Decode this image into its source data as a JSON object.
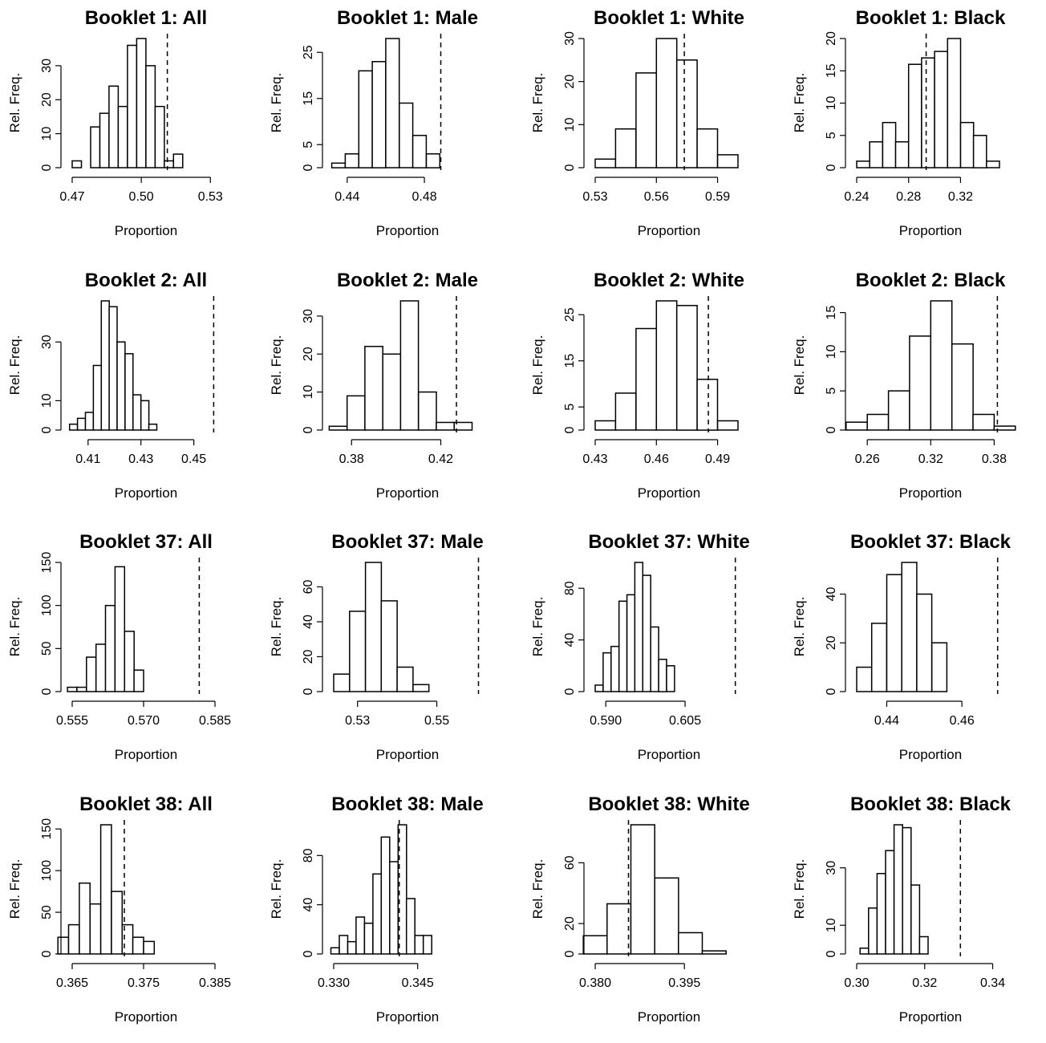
{
  "chart_data": [
    {
      "type": "bar",
      "title": "Booklet 1: All",
      "xlabel": "Proportion",
      "ylabel": "Rel. Freq.",
      "xticks": [
        0.47,
        0.5,
        0.53
      ],
      "xtick_labels": [
        "0.47",
        "0.50",
        "0.53"
      ],
      "yticks": [
        0,
        10,
        20,
        30
      ],
      "xlim": [
        0.47,
        0.532
      ],
      "ylim": [
        0,
        38
      ],
      "bin_width": 0.004,
      "bins": [
        [
          0.47,
          0.474,
          2
        ],
        [
          0.474,
          0.478,
          0
        ],
        [
          0.478,
          0.482,
          12
        ],
        [
          0.482,
          0.486,
          16
        ],
        [
          0.486,
          0.49,
          24
        ],
        [
          0.49,
          0.494,
          18
        ],
        [
          0.494,
          0.498,
          36
        ],
        [
          0.498,
          0.502,
          38
        ],
        [
          0.502,
          0.506,
          30
        ],
        [
          0.506,
          0.51,
          18
        ],
        [
          0.51,
          0.514,
          2
        ],
        [
          0.514,
          0.518,
          4
        ]
      ],
      "observed": 0.5113
    },
    {
      "type": "bar",
      "title": "Booklet 1: Male",
      "xlabel": "Proportion",
      "ylabel": "Rel. Freq.",
      "xticks": [
        0.44,
        0.48
      ],
      "xtick_labels": [
        "0.44",
        "0.48"
      ],
      "yticks": [
        0,
        5,
        15,
        25
      ],
      "xlim": [
        0.433,
        0.507
      ],
      "ylim": [
        0,
        28
      ],
      "bin_width": 0.007,
      "bins": [
        [
          0.432,
          0.439,
          1
        ],
        [
          0.439,
          0.446,
          3
        ],
        [
          0.446,
          0.453,
          21
        ],
        [
          0.453,
          0.46,
          23
        ],
        [
          0.46,
          0.467,
          28
        ],
        [
          0.467,
          0.474,
          14
        ],
        [
          0.474,
          0.481,
          7
        ],
        [
          0.481,
          0.488,
          3
        ]
      ],
      "observed": 0.4885
    },
    {
      "type": "bar",
      "title": "Booklet 1: White",
      "xlabel": "Proportion",
      "ylabel": "Rel. Freq.",
      "xticks": [
        0.53,
        0.56,
        0.59
      ],
      "xtick_labels": [
        "0.53",
        "0.56",
        "0.59"
      ],
      "yticks": [
        0,
        10,
        20,
        30
      ],
      "xlim": [
        0.53,
        0.6
      ],
      "ylim": [
        0,
        30
      ],
      "bin_width": 0.01,
      "bins": [
        [
          0.53,
          0.54,
          2
        ],
        [
          0.54,
          0.55,
          9
        ],
        [
          0.55,
          0.56,
          22
        ],
        [
          0.56,
          0.57,
          30
        ],
        [
          0.57,
          0.58,
          25
        ],
        [
          0.58,
          0.59,
          9
        ],
        [
          0.59,
          0.6,
          3
        ]
      ],
      "observed": 0.5737
    },
    {
      "type": "bar",
      "title": "Booklet 1: Black",
      "xlabel": "Proportion",
      "ylabel": "Rel. Freq.",
      "xticks": [
        0.24,
        0.28,
        0.32
      ],
      "xtick_labels": [
        "0.24",
        "0.28",
        "0.32"
      ],
      "yticks": [
        0,
        5,
        10,
        15,
        20
      ],
      "xlim": [
        0.24,
        0.35
      ],
      "ylim": [
        0,
        20
      ],
      "bin_width": 0.01,
      "bins": [
        [
          0.24,
          0.25,
          1
        ],
        [
          0.25,
          0.26,
          4
        ],
        [
          0.26,
          0.27,
          7
        ],
        [
          0.27,
          0.28,
          4
        ],
        [
          0.28,
          0.29,
          16
        ],
        [
          0.29,
          0.3,
          17
        ],
        [
          0.3,
          0.31,
          18
        ],
        [
          0.31,
          0.32,
          20
        ],
        [
          0.32,
          0.33,
          7
        ],
        [
          0.33,
          0.34,
          5
        ],
        [
          0.34,
          0.35,
          1
        ]
      ],
      "observed": 0.2935
    },
    {
      "type": "bar",
      "title": "Booklet 2: All",
      "xlabel": "Proportion",
      "ylabel": "Rel. Freq.",
      "xticks": [
        0.41,
        0.43,
        0.45
      ],
      "xtick_labels": [
        "0.41",
        "0.43",
        "0.45"
      ],
      "yticks": [
        0,
        10,
        30
      ],
      "xlim": [
        0.404,
        0.458
      ],
      "ylim": [
        0,
        44
      ],
      "bin_width": 0.003,
      "bins": [
        [
          0.403,
          0.406,
          2
        ],
        [
          0.406,
          0.409,
          4
        ],
        [
          0.409,
          0.412,
          6
        ],
        [
          0.412,
          0.415,
          22
        ],
        [
          0.415,
          0.418,
          44
        ],
        [
          0.418,
          0.421,
          42
        ],
        [
          0.421,
          0.424,
          30
        ],
        [
          0.424,
          0.427,
          26
        ],
        [
          0.427,
          0.43,
          12
        ],
        [
          0.43,
          0.433,
          10
        ],
        [
          0.433,
          0.436,
          2
        ]
      ],
      "observed": 0.4575
    },
    {
      "type": "bar",
      "title": "Booklet 2: Male",
      "xlabel": "Proportion",
      "ylabel": "Rel. Freq.",
      "xticks": [
        0.38,
        0.42
      ],
      "xtick_labels": [
        "0.38",
        "0.42"
      ],
      "yticks": [
        0,
        10,
        20,
        30
      ],
      "xlim": [
        0.372,
        0.436
      ],
      "ylim": [
        0,
        34
      ],
      "bin_width": 0.008,
      "bins": [
        [
          0.37,
          0.378,
          1
        ],
        [
          0.378,
          0.386,
          9
        ],
        [
          0.386,
          0.394,
          22
        ],
        [
          0.394,
          0.402,
          20
        ],
        [
          0.402,
          0.41,
          34
        ],
        [
          0.41,
          0.418,
          10
        ],
        [
          0.418,
          0.426,
          2
        ],
        [
          0.426,
          0.434,
          2
        ]
      ],
      "observed": 0.427
    },
    {
      "type": "bar",
      "title": "Booklet 2: White",
      "xlabel": "Proportion",
      "ylabel": "Rel. Freq.",
      "xticks": [
        0.43,
        0.46,
        0.49
      ],
      "xtick_labels": [
        "0.43",
        "0.46",
        "0.49"
      ],
      "yticks": [
        0,
        5,
        15,
        25
      ],
      "xlim": [
        0.43,
        0.5
      ],
      "ylim": [
        0,
        28
      ],
      "bin_width": 0.01,
      "bins": [
        [
          0.43,
          0.44,
          2
        ],
        [
          0.44,
          0.45,
          8
        ],
        [
          0.45,
          0.46,
          22
        ],
        [
          0.46,
          0.47,
          28
        ],
        [
          0.47,
          0.48,
          27
        ],
        [
          0.48,
          0.49,
          11
        ],
        [
          0.49,
          0.5,
          2
        ]
      ],
      "observed": 0.4855
    },
    {
      "type": "bar",
      "title": "Booklet 2: Black",
      "xlabel": "Proportion",
      "ylabel": "Rel. Freq.",
      "xticks": [
        0.26,
        0.32,
        0.38
      ],
      "xtick_labels": [
        "0.26",
        "0.32",
        "0.38"
      ],
      "yticks": [
        0,
        5,
        10,
        15
      ],
      "xlim": [
        0.25,
        0.385
      ],
      "ylim": [
        0,
        16.5
      ],
      "bin_width": 0.02,
      "bins": [
        [
          0.24,
          0.26,
          1
        ],
        [
          0.26,
          0.28,
          2
        ],
        [
          0.28,
          0.3,
          5
        ],
        [
          0.3,
          0.32,
          12
        ],
        [
          0.32,
          0.34,
          16.5
        ],
        [
          0.34,
          0.36,
          11
        ],
        [
          0.36,
          0.38,
          2
        ],
        [
          0.38,
          0.4,
          0.5
        ]
      ],
      "observed": 0.383
    },
    {
      "type": "bar",
      "title": "Booklet 37: All",
      "xlabel": "Proportion",
      "ylabel": "Rel. Freq.",
      "xticks": [
        0.555,
        0.57,
        0.585
      ],
      "xtick_labels": [
        "0.555",
        "0.570",
        "0.585"
      ],
      "yticks": [
        0,
        50,
        100,
        150
      ],
      "xlim": [
        0.555,
        0.585
      ],
      "ylim": [
        0,
        150
      ],
      "bin_width": 0.002,
      "bins": [
        [
          0.554,
          0.556,
          5
        ],
        [
          0.556,
          0.558,
          5
        ],
        [
          0.558,
          0.56,
          40
        ],
        [
          0.56,
          0.562,
          55
        ],
        [
          0.562,
          0.564,
          100
        ],
        [
          0.564,
          0.566,
          145
        ],
        [
          0.566,
          0.568,
          70
        ],
        [
          0.568,
          0.57,
          25
        ]
      ],
      "observed": 0.5817
    },
    {
      "type": "bar",
      "title": "Booklet 37: Male",
      "xlabel": "Proportion",
      "ylabel": "Rel. Freq.",
      "xticks": [
        0.53,
        0.55
      ],
      "xtick_labels": [
        "0.53",
        "0.55"
      ],
      "yticks": [
        0,
        20,
        40,
        60
      ],
      "xlim": [
        0.524,
        0.56
      ],
      "ylim": [
        0,
        74
      ],
      "bin_width": 0.004,
      "bins": [
        [
          0.524,
          0.528,
          10
        ],
        [
          0.528,
          0.532,
          46
        ],
        [
          0.532,
          0.536,
          74
        ],
        [
          0.536,
          0.54,
          52
        ],
        [
          0.54,
          0.544,
          14
        ],
        [
          0.544,
          0.548,
          4
        ]
      ],
      "observed": 0.5605
    },
    {
      "type": "bar",
      "title": "Booklet 37: White",
      "xlabel": "Proportion",
      "ylabel": "Rel. Freq.",
      "xticks": [
        0.59,
        0.605
      ],
      "xtick_labels": [
        "0.590",
        "0.605"
      ],
      "yticks": [
        0,
        40,
        80
      ],
      "xlim": [
        0.588,
        0.615
      ],
      "ylim": [
        0,
        100
      ],
      "bin_width": 0.0015,
      "bins": [
        [
          0.588,
          0.5895,
          5
        ],
        [
          0.5895,
          0.591,
          30
        ],
        [
          0.591,
          0.5925,
          35
        ],
        [
          0.5925,
          0.594,
          70
        ],
        [
          0.594,
          0.5955,
          75
        ],
        [
          0.5955,
          0.597,
          100
        ],
        [
          0.597,
          0.5985,
          90
        ],
        [
          0.5985,
          0.6,
          50
        ],
        [
          0.6,
          0.6015,
          25
        ],
        [
          0.6015,
          0.603,
          20
        ]
      ],
      "observed": 0.6145
    },
    {
      "type": "bar",
      "title": "Booklet 37: Black",
      "xlabel": "Proportion",
      "ylabel": "Rel. Freq.",
      "xticks": [
        0.44,
        0.46
      ],
      "xtick_labels": [
        "0.44",
        "0.46"
      ],
      "yticks": [
        0,
        20,
        40
      ],
      "xlim": [
        0.432,
        0.47
      ],
      "ylim": [
        0,
        53
      ],
      "bin_width": 0.004,
      "bins": [
        [
          0.432,
          0.436,
          10
        ],
        [
          0.436,
          0.44,
          28
        ],
        [
          0.44,
          0.444,
          48
        ],
        [
          0.444,
          0.448,
          53
        ],
        [
          0.448,
          0.452,
          40
        ],
        [
          0.452,
          0.456,
          20
        ]
      ],
      "observed": 0.4695
    },
    {
      "type": "bar",
      "title": "Booklet 38: All",
      "xlabel": "Proportion",
      "ylabel": "Rel. Freq.",
      "xticks": [
        0.365,
        0.375,
        0.385
      ],
      "xtick_labels": [
        "0.365",
        "0.375",
        "0.385"
      ],
      "yticks": [
        0,
        50,
        100,
        150
      ],
      "xlim": [
        0.365,
        0.385
      ],
      "ylim": [
        0,
        155
      ],
      "bin_width": 0.0015,
      "bins": [
        [
          0.363,
          0.3645,
          20
        ],
        [
          0.3645,
          0.366,
          35
        ],
        [
          0.366,
          0.3675,
          85
        ],
        [
          0.3675,
          0.369,
          60
        ],
        [
          0.369,
          0.3705,
          155
        ],
        [
          0.3705,
          0.372,
          75
        ],
        [
          0.372,
          0.3735,
          35
        ],
        [
          0.3735,
          0.375,
          20
        ],
        [
          0.375,
          0.3765,
          15
        ]
      ],
      "observed": 0.3723
    },
    {
      "type": "bar",
      "title": "Booklet 38: Male",
      "xlabel": "Proportion",
      "ylabel": "Rel. Freq.",
      "xticks": [
        0.33,
        0.345
      ],
      "xtick_labels": [
        "0.330",
        "0.345"
      ],
      "yticks": [
        0,
        40,
        80
      ],
      "xlim": [
        0.33,
        0.3555
      ],
      "ylim": [
        0,
        105
      ],
      "bin_width": 0.0015,
      "bins": [
        [
          0.3295,
          0.331,
          5
        ],
        [
          0.331,
          0.3325,
          15
        ],
        [
          0.3325,
          0.334,
          10
        ],
        [
          0.334,
          0.3355,
          30
        ],
        [
          0.3355,
          0.337,
          25
        ],
        [
          0.337,
          0.3385,
          65
        ],
        [
          0.3385,
          0.34,
          95
        ],
        [
          0.34,
          0.3415,
          75
        ],
        [
          0.3415,
          0.343,
          105
        ],
        [
          0.343,
          0.3445,
          45
        ],
        [
          0.3445,
          0.346,
          15
        ],
        [
          0.346,
          0.3475,
          15
        ]
      ],
      "observed": 0.3417
    },
    {
      "type": "bar",
      "title": "Booklet 38: White",
      "xlabel": "Proportion",
      "ylabel": "Rel. Freq.",
      "xticks": [
        0.38,
        0.395
      ],
      "xtick_labels": [
        "0.380",
        "0.395"
      ],
      "yticks": [
        0,
        20,
        60
      ],
      "xlim": [
        0.38,
        0.404
      ],
      "ylim": [
        0,
        85
      ],
      "bin_width": 0.004,
      "bins": [
        [
          0.378,
          0.382,
          12
        ],
        [
          0.382,
          0.386,
          33
        ],
        [
          0.386,
          0.39,
          85
        ],
        [
          0.39,
          0.394,
          50
        ],
        [
          0.394,
          0.398,
          14
        ],
        [
          0.398,
          0.402,
          2
        ]
      ],
      "observed": 0.3856
    },
    {
      "type": "bar",
      "title": "Booklet 38: Black",
      "xlabel": "Proportion",
      "ylabel": "Rel. Freq.",
      "xticks": [
        0.3,
        0.32,
        0.34
      ],
      "xtick_labels": [
        "0.30",
        "0.32",
        "0.34"
      ],
      "yticks": [
        0,
        10,
        30
      ],
      "xlim": [
        0.3,
        0.342
      ],
      "ylim": [
        0,
        45
      ],
      "bin_width": 0.0025,
      "bins": [
        [
          0.301,
          0.3035,
          2
        ],
        [
          0.3035,
          0.306,
          16
        ],
        [
          0.306,
          0.3085,
          28
        ],
        [
          0.3085,
          0.311,
          36
        ],
        [
          0.311,
          0.3135,
          45
        ],
        [
          0.3135,
          0.316,
          44
        ],
        [
          0.316,
          0.3185,
          24
        ],
        [
          0.3185,
          0.321,
          6
        ]
      ],
      "observed": 0.3305
    }
  ]
}
